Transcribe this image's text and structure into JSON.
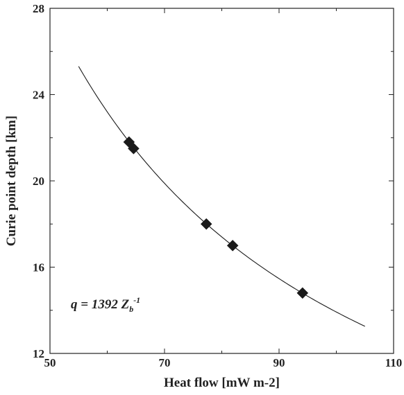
{
  "chart_data": {
    "type": "scatter",
    "xlabel": "Heat flow [mW m-2]",
    "ylabel": "Curie point depth [km]",
    "xlim": [
      50,
      110
    ],
    "ylim": [
      12,
      28
    ],
    "xticks": [
      50,
      70,
      90,
      110
    ],
    "yticks": [
      12,
      16,
      20,
      24,
      28
    ],
    "x_tick_labels": [
      "50",
      "70",
      "90",
      "110"
    ],
    "y_tick_labels": [
      "12",
      "16",
      "20",
      "24",
      "28"
    ],
    "grid": false,
    "series": [
      {
        "marker": "diamond",
        "color": "#1a1a1a",
        "points": [
          {
            "x": 63.8,
            "y": 21.8
          },
          {
            "x": 64.6,
            "y": 21.5
          },
          {
            "x": 77.3,
            "y": 18.0
          },
          {
            "x": 81.9,
            "y": 17.0
          },
          {
            "x": 94.1,
            "y": 14.8
          }
        ]
      }
    ],
    "fit_curve": {
      "coefficient": 1392,
      "x_from": 55,
      "x_to": 105,
      "color": "#1a1a1a"
    },
    "annotation": {
      "main": "q = 1392 Z",
      "sub": "b",
      "sup": "-1"
    }
  }
}
